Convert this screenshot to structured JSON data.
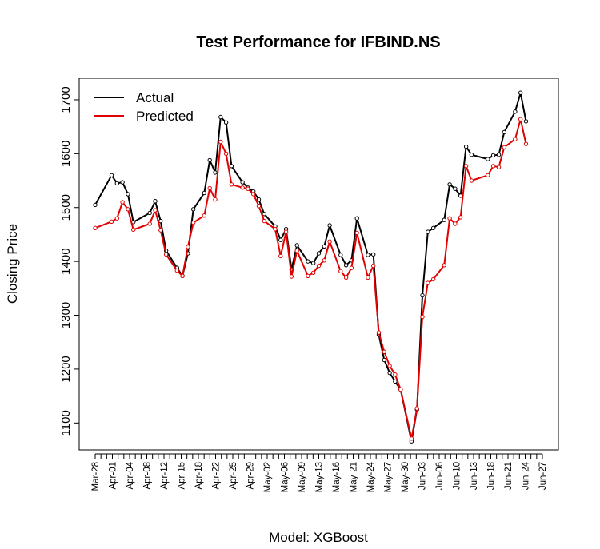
{
  "chart_data": {
    "type": "line",
    "title": "Test Performance for IFBIND.NS",
    "xlabel": "Model: XGBoost",
    "ylabel": "Closing Price",
    "ylim": [
      1050,
      1740
    ],
    "yticks": [
      1100,
      1200,
      1300,
      1400,
      1500,
      1600,
      1700
    ],
    "legend_position": "top-left",
    "xtick_labels": [
      "Mar-28",
      "Apr-01",
      "Apr-04",
      "Apr-08",
      "Apr-12",
      "Apr-15",
      "Apr-18",
      "Apr-22",
      "Apr-25",
      "Apr-29",
      "May-02",
      "May-06",
      "May-09",
      "May-13",
      "May-16",
      "May-21",
      "May-24",
      "May-27",
      "May-30",
      "Jun-03",
      "Jun-06",
      "Jun-10",
      "Jun-13",
      "Jun-18",
      "Jun-21",
      "Jun-24",
      "Jun-27"
    ],
    "xtick_index": [
      0,
      3,
      6,
      9,
      12,
      15,
      18,
      21,
      24,
      27,
      30,
      33,
      36,
      39,
      42,
      45,
      48,
      51,
      54,
      57,
      60,
      63,
      66,
      69,
      72,
      75,
      78
    ],
    "n_points": 79,
    "x": [
      0,
      3,
      4,
      5,
      6,
      7,
      10,
      11,
      12,
      13,
      15,
      16,
      17,
      18,
      20,
      21,
      22,
      23,
      24,
      25,
      27,
      28,
      29,
      30,
      31,
      33,
      34,
      35,
      36,
      37,
      39,
      40,
      41,
      42,
      43,
      45,
      46,
      47,
      48,
      50,
      51,
      52,
      53,
      54,
      55,
      56,
      58,
      59,
      60,
      61,
      62,
      64,
      65,
      66,
      67,
      68,
      69,
      72,
      73,
      74,
      75,
      77,
      78,
      79,
      80,
      81,
      82
    ],
    "series": [
      {
        "name": "Actual",
        "color": "#000000",
        "values": [
          1505,
          1560,
          1545,
          1547,
          1525,
          1473,
          1490,
          1512,
          1475,
          1420,
          1388,
          1373,
          1415,
          1497,
          1527,
          1588,
          1565,
          1668,
          1658,
          1577,
          1547,
          1537,
          1530,
          1515,
          1488,
          1465,
          1440,
          1460,
          1385,
          1430,
          1400,
          1397,
          1415,
          1428,
          1467,
          1412,
          1393,
          1402,
          1480,
          1412,
          1413,
          1264,
          1217,
          1193,
          1177,
          1162,
          1066,
          1125,
          1337,
          1455,
          1462,
          1477,
          1543,
          1535,
          1522,
          1613,
          1598,
          1590,
          1597,
          1598,
          1640,
          1678,
          1713,
          1660,
          null,
          null,
          null
        ]
      },
      {
        "name": "Predicted",
        "color": "#e00000",
        "values": [
          1462,
          1474,
          1480,
          1510,
          1497,
          1459,
          1470,
          1495,
          1458,
          1413,
          1383,
          1373,
          1427,
          1472,
          1485,
          1536,
          1515,
          1622,
          1600,
          1543,
          1537,
          1535,
          1525,
          1503,
          1475,
          1460,
          1410,
          1455,
          1372,
          1420,
          1373,
          1379,
          1392,
          1402,
          1437,
          1382,
          1370,
          1388,
          1453,
          1370,
          1392,
          1268,
          1232,
          1206,
          1190,
          1162,
          1071,
          1127,
          1297,
          1360,
          1367,
          1393,
          1480,
          1470,
          1482,
          1577,
          1550,
          1560,
          1577,
          1575,
          1612,
          1627,
          1664,
          1618,
          null,
          null,
          null
        ]
      }
    ]
  }
}
